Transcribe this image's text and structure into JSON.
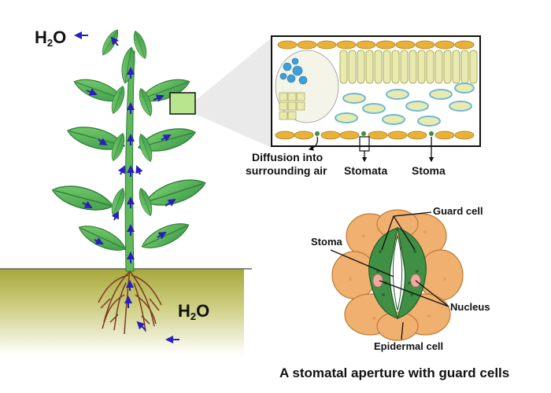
{
  "labels": {
    "h2o_top": {
      "main": "H",
      "sub": "2",
      "tail": "O"
    },
    "h2o_soil": {
      "main": "H",
      "sub": "2",
      "tail": "O"
    },
    "diffusion_line1": "Diffusion into",
    "diffusion_line2": "surrounding air",
    "stomata": "Stomata",
    "stoma_leaf": "Stoma",
    "guard_cell": "Guard cell",
    "stoma_cell": "Stoma",
    "nucleus": "Nucleus",
    "epidermal_cell": "Epidermal cell",
    "caption": "A stomatal aperture with guard cells"
  },
  "colors": {
    "leaf": "#5cb85c",
    "leaf_dark": "#2f7d3a",
    "arrow": "#2a1fb8",
    "soil_top": "#9a9a30",
    "epidermis": "#e8b23a",
    "mesophyll": "#e9eab0",
    "chloroplast": "#3fa0d8",
    "guard": "#3f8f44",
    "epidermal_cell": "#f0b070"
  }
}
